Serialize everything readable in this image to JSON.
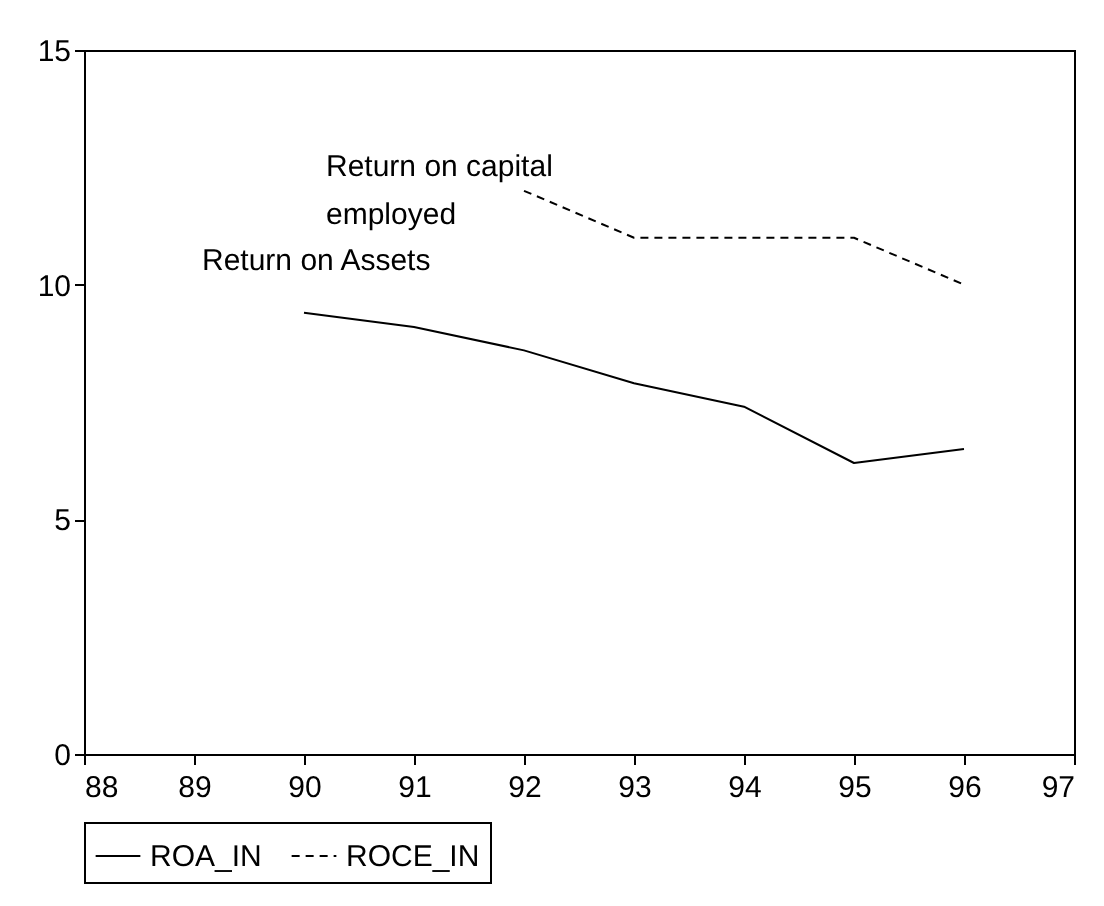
{
  "chart_data": {
    "type": "line",
    "x": [
      90,
      91,
      92,
      93,
      94,
      95,
      96
    ],
    "series": [
      {
        "name": "ROA_IN",
        "color": "#000000",
        "line_style": "solid",
        "values": [
          9.4,
          9.1,
          8.6,
          7.9,
          7.4,
          6.2,
          6.5
        ]
      },
      {
        "name": "ROCE_IN",
        "color": "#000000",
        "line_style": "dashed",
        "values": [
          null,
          null,
          12.0,
          11.0,
          11.0,
          11.0,
          10.0
        ]
      }
    ],
    "xlim": [
      88,
      97
    ],
    "xticks": [
      88,
      89,
      90,
      91,
      92,
      93,
      94,
      95,
      96,
      97
    ],
    "ylim": [
      0,
      15
    ],
    "yticks": [
      0,
      5,
      10,
      15
    ],
    "grid": false,
    "legend": "bottom",
    "annotations": [
      "Return on capital\nemployed",
      "Return on Assets"
    ]
  }
}
